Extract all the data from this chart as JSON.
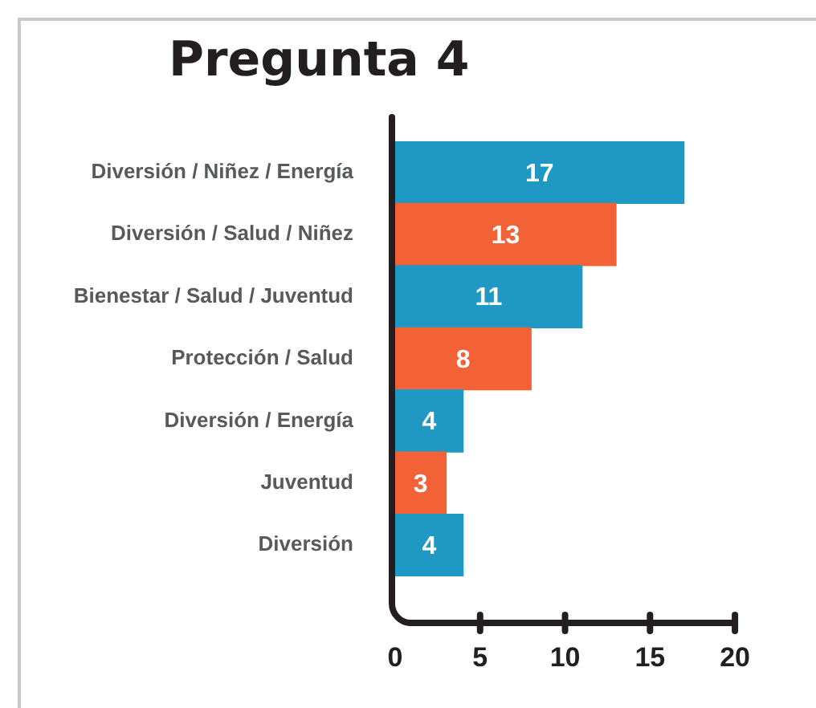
{
  "chart_data": {
    "type": "bar",
    "orientation": "horizontal",
    "title": "Pregunta 4",
    "categories": [
      "Diversión / Niñez / Energía",
      "Diversión / Salud / Niñez",
      "Bienestar / Salud / Juventud",
      "Protección / Salud",
      "Diversión / Energía",
      "Juventud",
      "Diversión"
    ],
    "values": [
      17,
      13,
      11,
      8,
      4,
      3,
      4
    ],
    "colors": [
      "#1f98c4",
      "#f26236",
      "#1f98c4",
      "#f26236",
      "#1f98c4",
      "#f26236",
      "#1f98c4"
    ],
    "xlim": [
      0,
      20
    ],
    "xticks": [
      0,
      5,
      10,
      15,
      20
    ],
    "data_labels": true
  }
}
